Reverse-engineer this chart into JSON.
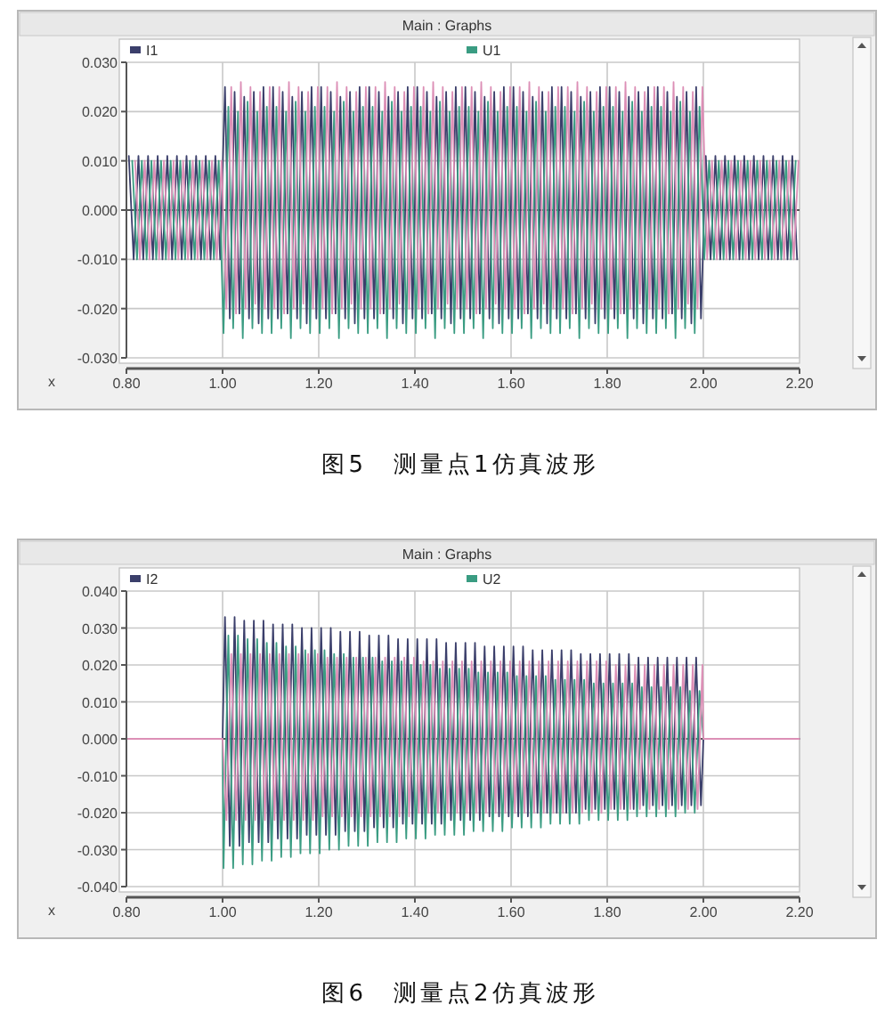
{
  "chart_data": [
    {
      "type": "line",
      "title": "Main : Graphs",
      "xlabel": "x",
      "legend": "top",
      "grid": true,
      "xlim": [
        0.8,
        2.2
      ],
      "xticks": [
        {
          "value": 0.8,
          "label": "0.80"
        },
        {
          "value": 1.0,
          "label": "1.00"
        },
        {
          "value": 1.2,
          "label": "1.20"
        },
        {
          "value": 1.4,
          "label": "1.40"
        },
        {
          "value": 1.6,
          "label": "1.60"
        },
        {
          "value": 1.8,
          "label": "1.80"
        },
        {
          "value": 2.0,
          "label": "2.00"
        },
        {
          "value": 2.2,
          "label": "2.20"
        }
      ],
      "ylim": [
        -0.03,
        0.03
      ],
      "yticks": [
        {
          "value": 0.03,
          "label": "0.030"
        },
        {
          "value": 0.02,
          "label": "0.020"
        },
        {
          "value": 0.01,
          "label": "0.010"
        },
        {
          "value": 0,
          "label": "0.000"
        },
        {
          "value": -0.01,
          "label": "-0.010"
        },
        {
          "value": -0.02,
          "label": "-0.020"
        },
        {
          "value": -0.03,
          "label": "-0.030"
        }
      ],
      "ref_lines": [
        {
          "axis": "y",
          "value": 0,
          "color": "#555555"
        }
      ],
      "annotations": [
        "图5　测量点1仿真波形"
      ],
      "series": [
        {
          "name": "I1",
          "color": "#3b3f6b",
          "x": [
            0.805,
            0.815,
            0.825,
            0.835,
            0.845,
            0.855,
            0.865,
            0.875,
            0.885,
            0.895,
            0.905,
            0.915,
            0.925,
            0.935,
            0.945,
            0.955,
            0.965,
            0.975,
            0.985,
            0.995,
            1.005,
            1.015,
            1.025,
            1.035,
            1.045,
            1.055,
            1.065,
            1.075,
            1.085,
            1.095,
            1.105,
            1.115,
            1.125,
            1.135,
            1.145,
            1.155,
            1.165,
            1.175,
            1.185,
            1.195,
            1.205,
            1.215,
            1.225,
            1.235,
            1.245,
            1.255,
            1.265,
            1.275,
            1.285,
            1.295,
            1.305,
            1.315,
            1.325,
            1.335,
            1.345,
            1.355,
            1.365,
            1.375,
            1.385,
            1.395,
            1.405,
            1.415,
            1.425,
            1.435,
            1.445,
            1.455,
            1.465,
            1.475,
            1.485,
            1.495,
            1.505,
            1.515,
            1.525,
            1.535,
            1.545,
            1.555,
            1.565,
            1.575,
            1.585,
            1.595,
            1.605,
            1.615,
            1.625,
            1.635,
            1.645,
            1.655,
            1.665,
            1.675,
            1.685,
            1.695,
            1.705,
            1.715,
            1.725,
            1.735,
            1.745,
            1.755,
            1.765,
            1.775,
            1.785,
            1.795,
            1.805,
            1.815,
            1.825,
            1.835,
            1.845,
            1.855,
            1.865,
            1.875,
            1.885,
            1.895,
            1.905,
            1.915,
            1.925,
            1.935,
            1.945,
            1.955,
            1.965,
            1.975,
            1.985,
            1.995,
            2.005,
            2.015,
            2.025,
            2.035,
            2.045,
            2.055,
            2.065,
            2.075,
            2.085,
            2.095,
            2.105,
            2.115,
            2.125,
            2.135,
            2.145,
            2.155,
            2.165,
            2.175,
            2.185,
            2.195
          ],
          "values": [
            0.011,
            -0.01,
            0.011,
            -0.01,
            0.011,
            -0.01,
            0.011,
            -0.01,
            0.011,
            -0.01,
            0.011,
            -0.01,
            0.011,
            -0.01,
            0.011,
            -0.01,
            0.011,
            -0.01,
            0.011,
            -0.01,
            0.025,
            -0.022,
            0.024,
            -0.021,
            0.023,
            -0.022,
            0.024,
            -0.023,
            0.025,
            -0.022,
            0.025,
            -0.022,
            0.024,
            -0.021,
            0.023,
            -0.022,
            0.024,
            -0.023,
            0.025,
            -0.022,
            0.025,
            -0.022,
            0.024,
            -0.021,
            0.023,
            -0.022,
            0.024,
            -0.023,
            0.025,
            -0.022,
            0.025,
            -0.022,
            0.024,
            -0.021,
            0.023,
            -0.022,
            0.024,
            -0.023,
            0.025,
            -0.022,
            0.025,
            -0.022,
            0.024,
            -0.021,
            0.023,
            -0.022,
            0.024,
            -0.023,
            0.025,
            -0.022,
            0.025,
            -0.022,
            0.024,
            -0.021,
            0.023,
            -0.022,
            0.024,
            -0.023,
            0.025,
            -0.022,
            0.025,
            -0.022,
            0.024,
            -0.021,
            0.023,
            -0.022,
            0.024,
            -0.023,
            0.025,
            -0.022,
            0.025,
            -0.022,
            0.024,
            -0.021,
            0.023,
            -0.022,
            0.024,
            -0.023,
            0.025,
            -0.022,
            0.025,
            -0.022,
            0.024,
            -0.021,
            0.023,
            -0.022,
            0.024,
            -0.023,
            0.025,
            -0.022,
            0.025,
            -0.022,
            0.024,
            -0.021,
            0.023,
            -0.022,
            0.024,
            -0.023,
            0.025,
            -0.022,
            0.011,
            -0.01,
            0.011,
            -0.01,
            0.011,
            -0.01,
            0.011,
            -0.01,
            0.011,
            -0.01,
            0.011,
            -0.01,
            0.011,
            -0.01,
            0.011,
            -0.01,
            0.011,
            -0.01,
            0.011,
            -0.01
          ]
        },
        {
          "name": "U1",
          "color": "#3a9c82",
          "x": [
            0.812,
            0.822,
            0.832,
            0.842,
            0.852,
            0.862,
            0.872,
            0.882,
            0.892,
            0.902,
            0.912,
            0.922,
            0.932,
            0.942,
            0.952,
            0.962,
            0.972,
            0.982,
            0.992,
            1.002,
            1.012,
            1.022,
            1.032,
            1.042,
            1.052,
            1.062,
            1.072,
            1.082,
            1.092,
            1.102,
            1.112,
            1.122,
            1.132,
            1.142,
            1.152,
            1.162,
            1.172,
            1.182,
            1.192,
            1.202,
            1.212,
            1.222,
            1.232,
            1.242,
            1.252,
            1.262,
            1.272,
            1.282,
            1.292,
            1.302,
            1.312,
            1.322,
            1.332,
            1.342,
            1.352,
            1.362,
            1.372,
            1.382,
            1.392,
            1.402,
            1.412,
            1.422,
            1.432,
            1.442,
            1.452,
            1.462,
            1.472,
            1.482,
            1.492,
            1.502,
            1.512,
            1.522,
            1.532,
            1.542,
            1.552,
            1.562,
            1.572,
            1.582,
            1.592,
            1.602,
            1.612,
            1.622,
            1.632,
            1.642,
            1.652,
            1.662,
            1.672,
            1.682,
            1.692,
            1.702,
            1.712,
            1.722,
            1.732,
            1.742,
            1.752,
            1.762,
            1.772,
            1.782,
            1.792,
            1.802,
            1.812,
            1.822,
            1.832,
            1.842,
            1.852,
            1.862,
            1.872,
            1.882,
            1.892,
            1.902,
            1.912,
            1.922,
            1.932,
            1.942,
            1.952,
            1.962,
            1.972,
            1.982,
            1.992,
            2.002,
            2.012,
            2.022,
            2.032,
            2.042,
            2.052,
            2.062,
            2.072,
            2.082,
            2.092,
            2.102,
            2.112,
            2.122,
            2.132,
            2.142,
            2.152,
            2.162,
            2.172,
            2.182,
            2.192
          ],
          "values": [
            0.01,
            -0.01,
            0.01,
            -0.01,
            0.01,
            -0.01,
            0.01,
            -0.01,
            0.01,
            -0.01,
            0.01,
            -0.01,
            0.01,
            -0.01,
            0.01,
            -0.01,
            0.01,
            -0.01,
            0.01,
            -0.025,
            0.021,
            -0.024,
            0.02,
            -0.026,
            0.022,
            -0.024,
            0.02,
            -0.025,
            0.021,
            -0.025,
            0.021,
            -0.024,
            0.02,
            -0.026,
            0.022,
            -0.024,
            0.02,
            -0.025,
            0.021,
            -0.025,
            0.021,
            -0.024,
            0.02,
            -0.026,
            0.022,
            -0.024,
            0.02,
            -0.025,
            0.021,
            -0.025,
            0.021,
            -0.024,
            0.02,
            -0.026,
            0.022,
            -0.024,
            0.02,
            -0.025,
            0.021,
            -0.025,
            0.021,
            -0.024,
            0.02,
            -0.026,
            0.022,
            -0.024,
            0.02,
            -0.025,
            0.021,
            -0.025,
            0.021,
            -0.024,
            0.02,
            -0.026,
            0.022,
            -0.024,
            0.02,
            -0.025,
            0.021,
            -0.025,
            0.021,
            -0.024,
            0.02,
            -0.026,
            0.022,
            -0.024,
            0.02,
            -0.025,
            0.021,
            -0.025,
            0.021,
            -0.024,
            0.02,
            -0.026,
            0.022,
            -0.024,
            0.02,
            -0.025,
            0.021,
            -0.025,
            0.021,
            -0.024,
            0.02,
            -0.026,
            0.022,
            -0.024,
            0.02,
            -0.025,
            0.021,
            -0.025,
            0.021,
            -0.024,
            0.02,
            -0.026,
            0.022,
            -0.024,
            0.02,
            -0.025,
            0.021,
            -0.01,
            0.01,
            -0.01,
            0.01,
            -0.01,
            0.01,
            -0.01,
            0.01,
            -0.01,
            0.01,
            -0.01,
            0.01,
            -0.01,
            0.01,
            -0.01,
            0.01,
            -0.01,
            0.01,
            -0.01,
            0.01
          ]
        },
        {
          "color": "#dc8fb6",
          "x": [
            0.818,
            0.828,
            0.838,
            0.848,
            0.858,
            0.868,
            0.878,
            0.888,
            0.898,
            0.908,
            0.918,
            0.928,
            0.938,
            0.948,
            0.958,
            0.968,
            0.978,
            0.988,
            0.998,
            1.008,
            1.018,
            1.028,
            1.038,
            1.048,
            1.058,
            1.068,
            1.078,
            1.088,
            1.098,
            1.108,
            1.118,
            1.128,
            1.138,
            1.148,
            1.158,
            1.168,
            1.178,
            1.188,
            1.198,
            1.208,
            1.218,
            1.228,
            1.238,
            1.248,
            1.258,
            1.268,
            1.278,
            1.288,
            1.298,
            1.308,
            1.318,
            1.328,
            1.338,
            1.348,
            1.358,
            1.368,
            1.378,
            1.388,
            1.398,
            1.408,
            1.418,
            1.428,
            1.438,
            1.448,
            1.458,
            1.468,
            1.478,
            1.488,
            1.498,
            1.508,
            1.518,
            1.528,
            1.538,
            1.548,
            1.558,
            1.568,
            1.578,
            1.588,
            1.598,
            1.608,
            1.618,
            1.628,
            1.638,
            1.648,
            1.658,
            1.668,
            1.678,
            1.688,
            1.698,
            1.708,
            1.718,
            1.728,
            1.738,
            1.748,
            1.758,
            1.768,
            1.778,
            1.788,
            1.798,
            1.808,
            1.818,
            1.828,
            1.838,
            1.848,
            1.858,
            1.868,
            1.878,
            1.888,
            1.898,
            1.908,
            1.918,
            1.928,
            1.938,
            1.948,
            1.958,
            1.968,
            1.978,
            1.988,
            1.998,
            2.008,
            2.018,
            2.028,
            2.038,
            2.048,
            2.058,
            2.068,
            2.078,
            2.088,
            2.098,
            2.108,
            2.118,
            2.128,
            2.138,
            2.148,
            2.158,
            2.168,
            2.178,
            2.188,
            2.198
          ],
          "values": [
            0.01,
            -0.01,
            0.01,
            -0.01,
            0.01,
            -0.01,
            0.01,
            -0.01,
            0.01,
            -0.01,
            0.01,
            -0.01,
            0.01,
            -0.01,
            0.01,
            -0.01,
            0.01,
            -0.01,
            0.01,
            -0.02,
            0.025,
            -0.021,
            0.026,
            -0.02,
            0.025,
            -0.019,
            0.024,
            -0.02,
            0.025,
            -0.02,
            0.025,
            -0.021,
            0.026,
            -0.02,
            0.025,
            -0.019,
            0.024,
            -0.02,
            0.025,
            -0.02,
            0.025,
            -0.021,
            0.026,
            -0.02,
            0.025,
            -0.019,
            0.024,
            -0.02,
            0.025,
            -0.02,
            0.025,
            -0.021,
            0.026,
            -0.02,
            0.025,
            -0.019,
            0.024,
            -0.02,
            0.025,
            -0.02,
            0.025,
            -0.021,
            0.026,
            -0.02,
            0.025,
            -0.019,
            0.024,
            -0.02,
            0.025,
            -0.02,
            0.025,
            -0.021,
            0.026,
            -0.02,
            0.025,
            -0.019,
            0.024,
            -0.02,
            0.025,
            -0.02,
            0.025,
            -0.021,
            0.026,
            -0.02,
            0.025,
            -0.019,
            0.024,
            -0.02,
            0.025,
            -0.02,
            0.025,
            -0.021,
            0.026,
            -0.02,
            0.025,
            -0.019,
            0.024,
            -0.02,
            0.025,
            -0.02,
            0.025,
            -0.021,
            0.026,
            -0.02,
            0.025,
            -0.019,
            0.024,
            -0.02,
            0.025,
            -0.02,
            0.025,
            -0.021,
            0.026,
            -0.02,
            0.025,
            -0.019,
            0.024,
            -0.02,
            0.025,
            -0.01,
            0.01,
            -0.01,
            0.01,
            -0.01,
            0.01,
            -0.01,
            0.01,
            -0.01,
            0.01,
            -0.01,
            0.01,
            -0.01,
            0.01,
            -0.01,
            0.01,
            -0.01,
            0.01,
            -0.01,
            0.01
          ]
        }
      ]
    },
    {
      "type": "line",
      "title": "Main : Graphs",
      "xlabel": "x",
      "legend": "top",
      "grid": true,
      "xlim": [
        0.8,
        2.2
      ],
      "xticks": [
        {
          "value": 0.8,
          "label": "0.80"
        },
        {
          "value": 1.0,
          "label": "1.00"
        },
        {
          "value": 1.2,
          "label": "1.20"
        },
        {
          "value": 1.4,
          "label": "1.40"
        },
        {
          "value": 1.6,
          "label": "1.60"
        },
        {
          "value": 1.8,
          "label": "1.80"
        },
        {
          "value": 2.0,
          "label": "2.00"
        },
        {
          "value": 2.2,
          "label": "2.20"
        }
      ],
      "ylim": [
        -0.04,
        0.04
      ],
      "yticks": [
        {
          "value": 0.04,
          "label": "0.040"
        },
        {
          "value": 0.03,
          "label": "0.030"
        },
        {
          "value": 0.02,
          "label": "0.020"
        },
        {
          "value": 0.01,
          "label": "0.010"
        },
        {
          "value": 0,
          "label": "0.000"
        },
        {
          "value": -0.01,
          "label": "-0.010"
        },
        {
          "value": -0.02,
          "label": "-0.020"
        },
        {
          "value": -0.03,
          "label": "-0.030"
        },
        {
          "value": -0.04,
          "label": "-0.040"
        }
      ],
      "ref_lines": [
        {
          "axis": "y",
          "value": 0,
          "color": "#555555"
        }
      ],
      "annotations": [
        "图6　测量点2仿真波形"
      ],
      "series": [
        {
          "name": "I2",
          "color": "#3b3f6b",
          "x": [
            0.8,
            1.0,
            1.005,
            1.015,
            1.025,
            1.035,
            1.045,
            1.055,
            1.065,
            1.075,
            1.085,
            1.095,
            1.105,
            1.115,
            1.125,
            1.135,
            1.145,
            1.155,
            1.165,
            1.175,
            1.185,
            1.195,
            1.205,
            1.215,
            1.225,
            1.235,
            1.245,
            1.255,
            1.265,
            1.275,
            1.285,
            1.295,
            1.305,
            1.315,
            1.325,
            1.335,
            1.345,
            1.355,
            1.365,
            1.375,
            1.385,
            1.395,
            1.405,
            1.415,
            1.425,
            1.435,
            1.445,
            1.455,
            1.465,
            1.475,
            1.485,
            1.495,
            1.505,
            1.515,
            1.525,
            1.535,
            1.545,
            1.555,
            1.565,
            1.575,
            1.585,
            1.595,
            1.605,
            1.615,
            1.625,
            1.635,
            1.645,
            1.655,
            1.665,
            1.675,
            1.685,
            1.695,
            1.705,
            1.715,
            1.725,
            1.735,
            1.745,
            1.755,
            1.765,
            1.775,
            1.785,
            1.795,
            1.805,
            1.815,
            1.825,
            1.835,
            1.845,
            1.855,
            1.865,
            1.875,
            1.885,
            1.895,
            1.905,
            1.915,
            1.925,
            1.935,
            1.945,
            1.955,
            1.965,
            1.975,
            1.985,
            1.995,
            2.0,
            2.2
          ],
          "values": [
            0,
            0,
            0.033,
            -0.029,
            0.033,
            -0.029,
            0.032,
            -0.028,
            0.032,
            -0.028,
            0.032,
            -0.028,
            0.031,
            -0.027,
            0.031,
            -0.027,
            0.031,
            -0.027,
            0.03,
            -0.026,
            0.03,
            -0.026,
            0.03,
            -0.026,
            0.03,
            -0.026,
            0.029,
            -0.025,
            0.029,
            -0.025,
            0.029,
            -0.025,
            0.028,
            -0.024,
            0.028,
            -0.024,
            0.028,
            -0.024,
            0.027,
            -0.023,
            0.027,
            -0.023,
            0.027,
            -0.023,
            0.027,
            -0.023,
            0.027,
            -0.023,
            0.026,
            -0.022,
            0.026,
            -0.022,
            0.026,
            -0.022,
            0.026,
            -0.022,
            0.025,
            -0.021,
            0.025,
            -0.021,
            0.025,
            -0.021,
            0.025,
            -0.021,
            0.025,
            -0.021,
            0.024,
            -0.02,
            0.024,
            -0.02,
            0.024,
            -0.02,
            0.024,
            -0.02,
            0.024,
            -0.02,
            0.023,
            -0.019,
            0.023,
            -0.019,
            0.023,
            -0.019,
            0.023,
            -0.019,
            0.023,
            -0.019,
            0.023,
            -0.019,
            0.022,
            -0.018,
            0.022,
            -0.018,
            0.022,
            -0.018,
            0.022,
            -0.018,
            0.022,
            -0.018,
            0.022,
            -0.018,
            0.022,
            -0.018,
            0,
            0
          ]
        },
        {
          "name": "U2",
          "color": "#3a9c82",
          "x": [
            0.8,
            1.0,
            1.002,
            1.012,
            1.022,
            1.032,
            1.042,
            1.052,
            1.062,
            1.072,
            1.082,
            1.092,
            1.102,
            1.112,
            1.122,
            1.132,
            1.142,
            1.152,
            1.162,
            1.172,
            1.182,
            1.192,
            1.202,
            1.212,
            1.222,
            1.232,
            1.242,
            1.252,
            1.262,
            1.272,
            1.282,
            1.292,
            1.302,
            1.312,
            1.322,
            1.332,
            1.342,
            1.352,
            1.362,
            1.372,
            1.382,
            1.392,
            1.402,
            1.412,
            1.422,
            1.432,
            1.442,
            1.452,
            1.462,
            1.472,
            1.482,
            1.492,
            1.502,
            1.512,
            1.522,
            1.532,
            1.542,
            1.552,
            1.562,
            1.572,
            1.582,
            1.592,
            1.602,
            1.612,
            1.622,
            1.632,
            1.642,
            1.652,
            1.662,
            1.672,
            1.682,
            1.692,
            1.702,
            1.712,
            1.722,
            1.732,
            1.742,
            1.752,
            1.762,
            1.772,
            1.782,
            1.792,
            1.802,
            1.812,
            1.822,
            1.832,
            1.842,
            1.852,
            1.862,
            1.872,
            1.882,
            1.892,
            1.902,
            1.912,
            1.922,
            1.932,
            1.942,
            1.952,
            1.962,
            1.972,
            1.982,
            1.992,
            2.0,
            2.2
          ],
          "values": [
            0,
            0,
            -0.035,
            0.028,
            -0.035,
            0.028,
            -0.034,
            0.027,
            -0.034,
            0.027,
            -0.033,
            0.026,
            -0.033,
            0.026,
            -0.032,
            0.025,
            -0.032,
            0.025,
            -0.031,
            0.024,
            -0.031,
            0.024,
            -0.031,
            0.024,
            -0.03,
            0.023,
            -0.03,
            0.023,
            -0.029,
            0.022,
            -0.029,
            0.022,
            -0.029,
            0.022,
            -0.028,
            0.021,
            -0.028,
            0.021,
            -0.028,
            0.021,
            -0.027,
            0.02,
            -0.027,
            0.02,
            -0.027,
            0.02,
            -0.026,
            0.019,
            -0.026,
            0.019,
            -0.026,
            0.019,
            -0.026,
            0.019,
            -0.025,
            0.018,
            -0.025,
            0.018,
            -0.025,
            0.018,
            -0.025,
            0.018,
            -0.024,
            0.017,
            -0.024,
            0.017,
            -0.024,
            0.017,
            -0.024,
            0.017,
            -0.023,
            0.016,
            -0.023,
            0.016,
            -0.023,
            0.016,
            -0.023,
            0.016,
            -0.022,
            0.015,
            -0.022,
            0.015,
            -0.022,
            0.015,
            -0.022,
            0.015,
            -0.022,
            0.015,
            -0.021,
            0.014,
            -0.021,
            0.014,
            -0.021,
            0.014,
            -0.021,
            0.014,
            -0.021,
            0.014,
            -0.02,
            0.013,
            -0.02,
            0.013,
            0,
            0
          ]
        },
        {
          "color": "#dc8fb6",
          "x": [
            0.8,
            1.0,
            1.008,
            1.018,
            1.028,
            1.038,
            1.048,
            1.058,
            1.068,
            1.078,
            1.088,
            1.098,
            1.108,
            1.118,
            1.128,
            1.138,
            1.148,
            1.158,
            1.168,
            1.178,
            1.188,
            1.198,
            1.208,
            1.218,
            1.228,
            1.238,
            1.248,
            1.258,
            1.268,
            1.278,
            1.288,
            1.298,
            1.308,
            1.318,
            1.328,
            1.338,
            1.348,
            1.358,
            1.368,
            1.378,
            1.388,
            1.398,
            1.408,
            1.418,
            1.428,
            1.438,
            1.448,
            1.458,
            1.468,
            1.478,
            1.488,
            1.498,
            1.508,
            1.518,
            1.528,
            1.538,
            1.548,
            1.558,
            1.568,
            1.578,
            1.588,
            1.598,
            1.608,
            1.618,
            1.628,
            1.638,
            1.648,
            1.658,
            1.668,
            1.678,
            1.688,
            1.698,
            1.708,
            1.718,
            1.728,
            1.738,
            1.748,
            1.758,
            1.768,
            1.778,
            1.788,
            1.798,
            1.808,
            1.818,
            1.828,
            1.838,
            1.848,
            1.858,
            1.868,
            1.878,
            1.888,
            1.898,
            1.908,
            1.918,
            1.928,
            1.938,
            1.948,
            1.958,
            1.968,
            1.978,
            1.988,
            1.998,
            2.0,
            2.2
          ],
          "values": [
            0,
            0,
            -0.022,
            0.023,
            -0.022,
            0.023,
            -0.022,
            0.023,
            -0.022,
            0.023,
            -0.022,
            0.023,
            -0.022,
            0.023,
            -0.022,
            0.023,
            -0.022,
            0.023,
            -0.022,
            0.023,
            -0.022,
            0.023,
            -0.021,
            0.022,
            -0.021,
            0.022,
            -0.021,
            0.022,
            -0.021,
            0.022,
            -0.021,
            0.022,
            -0.021,
            0.022,
            -0.021,
            0.022,
            -0.021,
            0.022,
            -0.021,
            0.022,
            -0.021,
            0.022,
            -0.02,
            0.021,
            -0.02,
            0.021,
            -0.02,
            0.021,
            -0.02,
            0.021,
            -0.02,
            0.021,
            -0.02,
            0.021,
            -0.02,
            0.021,
            -0.02,
            0.021,
            -0.02,
            0.021,
            -0.02,
            0.021,
            -0.02,
            0.021,
            -0.02,
            0.021,
            -0.02,
            0.021,
            -0.02,
            0.021,
            -0.02,
            0.021,
            -0.02,
            0.021,
            -0.02,
            0.021,
            -0.02,
            0.021,
            -0.02,
            0.021,
            -0.02,
            0.021,
            -0.019,
            0.02,
            -0.019,
            0.02,
            -0.019,
            0.02,
            -0.019,
            0.02,
            -0.019,
            0.02,
            -0.019,
            0.02,
            -0.019,
            0.02,
            -0.019,
            0.02,
            -0.019,
            0.02,
            -0.019,
            0.02,
            0,
            0
          ]
        }
      ]
    }
  ]
}
